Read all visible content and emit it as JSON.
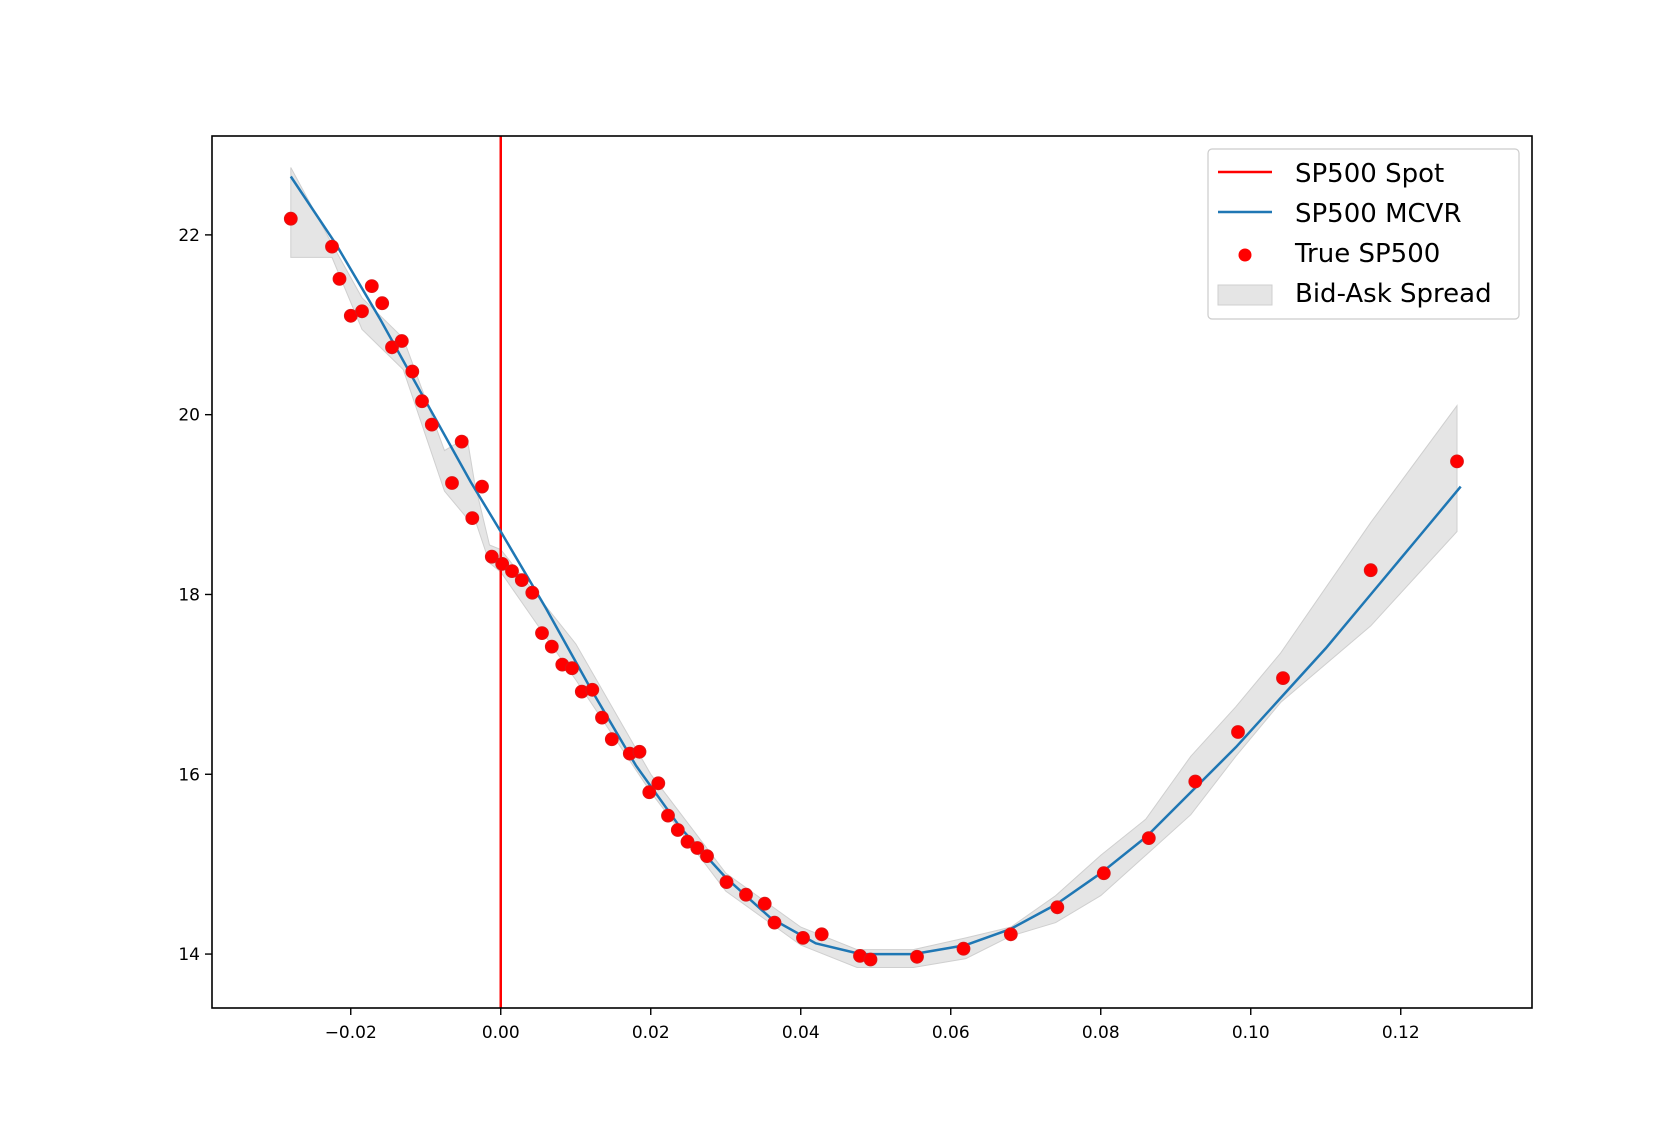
{
  "chart_data": {
    "type": "scatter",
    "title": "",
    "xlabel": "",
    "ylabel": "",
    "xlim": [
      -0.0385,
      0.1375
    ],
    "ylim": [
      13.4,
      23.1
    ],
    "xticks": [
      -0.02,
      0.0,
      0.02,
      0.04,
      0.06,
      0.08,
      0.1,
      0.12
    ],
    "xtick_labels": [
      "−0.02",
      "0.00",
      "0.02",
      "0.04",
      "0.06",
      "0.08",
      "0.10",
      "0.12"
    ],
    "yticks": [
      14,
      16,
      18,
      20,
      22
    ],
    "ytick_labels": [
      "14",
      "16",
      "18",
      "20",
      "22"
    ],
    "grid": false,
    "legend_position": "top-right",
    "legend": [
      {
        "label": "SP500 Spot",
        "kind": "line",
        "color": "#ff0000"
      },
      {
        "label": "SP500 MCVR",
        "kind": "line",
        "color": "#1f77b4"
      },
      {
        "label": "True SP500",
        "kind": "marker",
        "color": "#ff0000"
      },
      {
        "label": "Bid-Ask Spread",
        "kind": "patch",
        "color": "#d3d3d3"
      }
    ],
    "spot": {
      "name": "SP500 Spot",
      "x": 0.0,
      "color": "#ff0000"
    },
    "mcvr": {
      "name": "SP500 MCVR",
      "color": "#1f77b4",
      "x": [
        -0.028,
        -0.022,
        -0.016,
        -0.01,
        -0.004,
        0.0,
        0.006,
        0.012,
        0.018,
        0.024,
        0.03,
        0.036,
        0.042,
        0.048,
        0.055,
        0.062,
        0.068,
        0.074,
        0.08,
        0.086,
        0.092,
        0.098,
        0.104,
        0.11,
        0.116,
        0.122,
        0.128
      ],
      "y": [
        22.65,
        21.9,
        21.05,
        20.15,
        19.25,
        18.7,
        17.85,
        16.95,
        16.1,
        15.4,
        14.85,
        14.4,
        14.12,
        14.0,
        14.0,
        14.1,
        14.28,
        14.55,
        14.9,
        15.3,
        15.8,
        16.3,
        16.85,
        17.4,
        18.0,
        18.6,
        19.2
      ]
    },
    "spread": {
      "name": "Bid-Ask Spread",
      "color": "#d3d3d3",
      "x": [
        -0.028,
        -0.0225,
        -0.0185,
        -0.013,
        -0.0075,
        -0.0045,
        -0.0035,
        -0.0015,
        0.0,
        0.01,
        0.02,
        0.03,
        0.04,
        0.0475,
        0.055,
        0.062,
        0.068,
        0.074,
        0.08,
        0.086,
        0.092,
        0.098,
        0.104,
        0.116,
        0.1275
      ],
      "upper": [
        22.75,
        21.9,
        21.3,
        20.85,
        19.6,
        19.75,
        19.25,
        18.55,
        18.5,
        17.45,
        16.0,
        14.9,
        14.3,
        14.05,
        14.05,
        14.18,
        14.3,
        14.65,
        15.1,
        15.5,
        16.2,
        16.75,
        17.35,
        18.8,
        20.1
      ],
      "lower": [
        21.75,
        21.75,
        20.95,
        20.5,
        19.15,
        18.85,
        18.85,
        18.35,
        18.25,
        17.05,
        15.8,
        14.7,
        14.1,
        13.85,
        13.85,
        13.95,
        14.2,
        14.35,
        14.65,
        15.1,
        15.55,
        16.2,
        16.8,
        17.65,
        18.7
      ]
    },
    "true_points": {
      "name": "True SP500",
      "color": "#ff0000",
      "x": [
        -0.028,
        -0.0225,
        -0.0215,
        -0.02,
        -0.0185,
        -0.0172,
        -0.0158,
        -0.0145,
        -0.0132,
        -0.0118,
        -0.0105,
        -0.0092,
        -0.0065,
        -0.0052,
        -0.0038,
        -0.0025,
        -0.0012,
        0.0002,
        0.0015,
        0.0028,
        0.0042,
        0.0055,
        0.0068,
        0.0082,
        0.0095,
        0.0108,
        0.0122,
        0.0135,
        0.0148,
        0.0172,
        0.0185,
        0.0198,
        0.021,
        0.0223,
        0.0236,
        0.0249,
        0.0262,
        0.0275,
        0.0301,
        0.0327,
        0.0352,
        0.0365,
        0.0403,
        0.0428,
        0.0479,
        0.0493,
        0.0555,
        0.0617,
        0.068,
        0.0742,
        0.0804,
        0.0864,
        0.0926,
        0.0983,
        0.1043,
        0.116,
        0.1275
      ],
      "y": [
        22.18,
        21.87,
        21.51,
        21.1,
        21.15,
        21.43,
        21.24,
        20.75,
        20.82,
        20.48,
        20.15,
        19.89,
        19.24,
        19.7,
        18.85,
        19.2,
        18.42,
        18.34,
        18.26,
        18.16,
        18.02,
        17.57,
        17.42,
        17.22,
        17.18,
        16.92,
        16.94,
        16.63,
        16.39,
        16.23,
        16.25,
        15.8,
        15.9,
        15.54,
        15.38,
        15.25,
        15.18,
        15.09,
        14.8,
        14.66,
        14.56,
        14.35,
        14.18,
        14.22,
        13.98,
        13.94,
        13.97,
        14.06,
        14.22,
        14.52,
        14.9,
        15.29,
        15.92,
        16.47,
        17.07,
        18.27,
        19.48
      ]
    }
  }
}
